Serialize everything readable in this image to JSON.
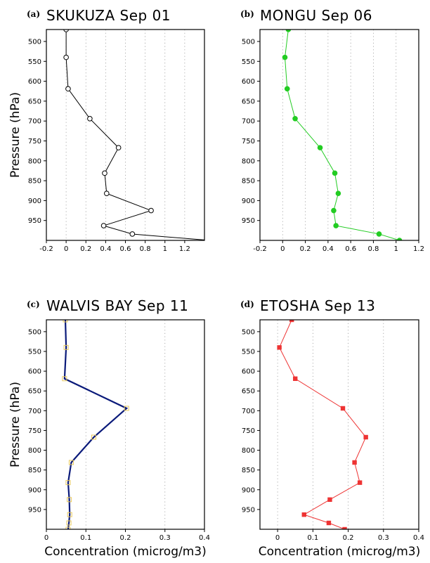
{
  "chart_data": [
    {
      "type": "line",
      "panel_label": "(a)",
      "title": "SKUKUZA Sep 01",
      "xlabel": "",
      "ylabel": "Pressure (hPa)",
      "xlim": [
        -0.2,
        1.4
      ],
      "ylim": [
        1000,
        470
      ],
      "xticks": [
        -0.2,
        0,
        0.2,
        0.4,
        0.6,
        0.8,
        1,
        1.2
      ],
      "xtick_labels": [
        "-0.2",
        "0",
        "0.2",
        "0.4",
        "0.6",
        "0.8",
        "1",
        "1.2"
      ],
      "yticks": [
        500,
        550,
        600,
        650,
        700,
        750,
        800,
        850,
        900,
        950
      ],
      "ytick_labels": [
        "500",
        "550",
        "600",
        "650",
        "700",
        "750",
        "800",
        "850",
        "900",
        "950"
      ],
      "grid": "vertical dotted",
      "series": [
        {
          "color": "#000000",
          "marker": "open-circle",
          "x": [
            0.0,
            0.0,
            0.02,
            0.24,
            0.53,
            0.39,
            0.41,
            0.86,
            0.38,
            0.67,
            1.45
          ],
          "y": [
            470,
            540,
            619,
            694,
            767,
            831,
            882,
            925,
            963,
            984,
            1000
          ]
        }
      ]
    },
    {
      "type": "line",
      "panel_label": "(b)",
      "title": "MONGU Sep 06",
      "xlabel": "",
      "ylabel": "",
      "xlim": [
        -0.2,
        1.2
      ],
      "ylim": [
        1000,
        470
      ],
      "xticks": [
        -0.2,
        0,
        0.2,
        0.4,
        0.6,
        0.8,
        1,
        1.2
      ],
      "xtick_labels": [
        "-0.2",
        "0",
        "0.2",
        "0.4",
        "0.6",
        "0.8",
        "1",
        "1.2"
      ],
      "yticks": [
        500,
        550,
        600,
        650,
        700,
        750,
        800,
        850,
        900,
        950
      ],
      "ytick_labels": [
        "500",
        "550",
        "600",
        "650",
        "700",
        "750",
        "800",
        "850",
        "900",
        "950"
      ],
      "grid": "vertical dotted",
      "series": [
        {
          "color": "#22cc22",
          "marker": "filled-circle",
          "x": [
            0.05,
            0.02,
            0.04,
            0.11,
            0.33,
            0.46,
            0.49,
            0.45,
            0.47,
            0.85,
            1.03
          ],
          "y": [
            470,
            540,
            619,
            694,
            767,
            831,
            882,
            925,
            963,
            984,
            1000
          ]
        }
      ]
    },
    {
      "type": "line",
      "panel_label": "(c)",
      "title": "WALVIS BAY Sep 11",
      "xlabel": "Concentration (microg/m3)",
      "ylabel": "Pressure (hPa)",
      "xlim": [
        0,
        0.4
      ],
      "ylim": [
        1000,
        470
      ],
      "xticks": [
        0,
        0.1,
        0.2,
        0.3,
        0.4
      ],
      "xtick_labels": [
        "0",
        "0.1",
        "0.2",
        "0.3",
        "0.4"
      ],
      "yticks": [
        500,
        550,
        600,
        650,
        700,
        750,
        800,
        850,
        900,
        950
      ],
      "ytick_labels": [
        "500",
        "550",
        "600",
        "650",
        "700",
        "750",
        "800",
        "850",
        "900",
        "950"
      ],
      "grid": "vertical dotted",
      "series": [
        {
          "color": "#0a1a7a",
          "marker": "open-square",
          "marker_color": "#e8c85a",
          "x": [
            0.048,
            0.05,
            0.046,
            0.203,
            0.12,
            0.063,
            0.055,
            0.058,
            0.059,
            0.057,
            0.055
          ],
          "y": [
            470,
            540,
            619,
            694,
            767,
            831,
            882,
            925,
            963,
            984,
            1000
          ]
        }
      ]
    },
    {
      "type": "line",
      "panel_label": "(d)",
      "title": "ETOSHA Sep 13",
      "xlabel": "Concentration (microg/m3)",
      "ylabel": "",
      "xlim": [
        -0.05,
        0.4
      ],
      "ylim": [
        1000,
        470
      ],
      "xticks": [
        0,
        0.1,
        0.2,
        0.3,
        0.4
      ],
      "xtick_labels": [
        "0",
        "0.1",
        "0.2",
        "0.3",
        "0.4"
      ],
      "yticks": [
        500,
        550,
        600,
        650,
        700,
        750,
        800,
        850,
        900,
        950
      ],
      "ytick_labels": [
        "500",
        "550",
        "600",
        "650",
        "700",
        "750",
        "800",
        "850",
        "900",
        "950"
      ],
      "grid": "vertical dotted",
      "series": [
        {
          "color": "#ee3333",
          "marker": "filled-square",
          "x": [
            0.04,
            0.005,
            0.05,
            0.185,
            0.25,
            0.218,
            0.233,
            0.148,
            0.075,
            0.145,
            0.19
          ],
          "y": [
            470,
            540,
            619,
            694,
            767,
            831,
            882,
            925,
            963,
            984,
            1000
          ]
        }
      ]
    }
  ]
}
